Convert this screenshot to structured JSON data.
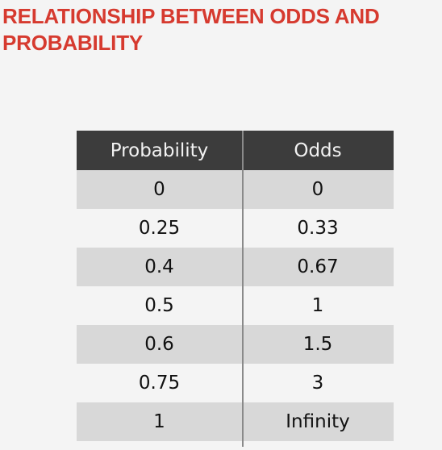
{
  "slide": {
    "title": "RELATIONSHIP BETWEEN ODDS AND PROBABILITY"
  },
  "table": {
    "headers": [
      "Probability",
      "Odds"
    ],
    "rows": [
      [
        "0",
        "0"
      ],
      [
        "0.25",
        "0.33"
      ],
      [
        "0.4",
        "0.67"
      ],
      [
        "0.5",
        "1"
      ],
      [
        "0.6",
        "1.5"
      ],
      [
        "0.75",
        "3"
      ],
      [
        "1",
        "Infinity"
      ]
    ]
  },
  "colors": {
    "title": "#d63a2f",
    "header_background": "#3c3c3c",
    "shaded_row": "#d8d8d8",
    "page_background": "#f4f4f4"
  }
}
